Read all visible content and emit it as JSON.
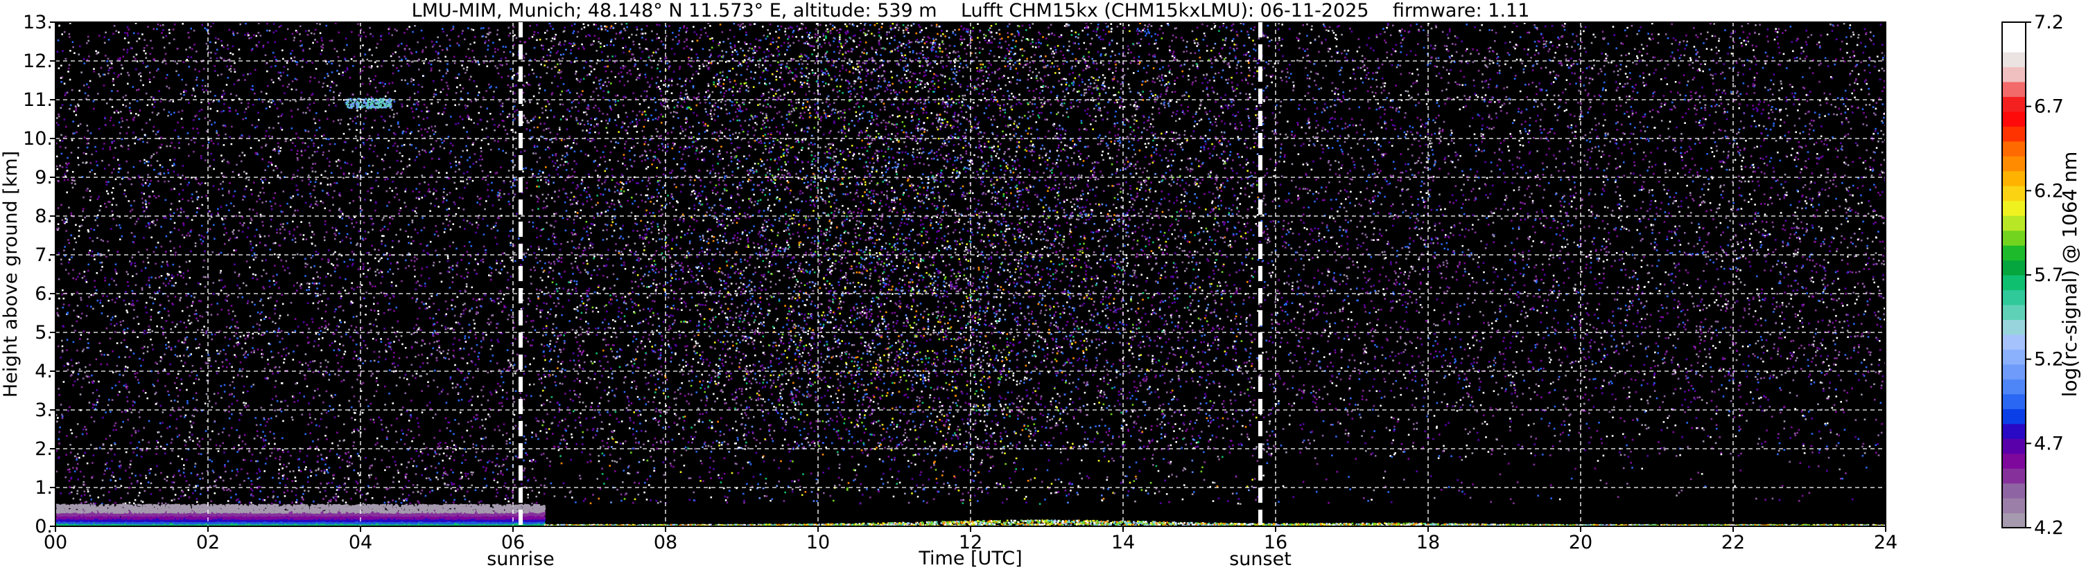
{
  "chart_data": {
    "type": "heatmap",
    "title": "LMU-MIM, Munich; 48.148° N 11.573° E, altitude: 539 m    Lufft CHM15kx (CHM15kxLMU): 06-11-2025    firmware: 1.11",
    "xlabel": "Time [UTC]",
    "ylabel": "Height above ground [km]",
    "xlim": [
      0,
      24
    ],
    "ylim": [
      0,
      13
    ],
    "x_ticks": [
      0,
      2,
      4,
      6,
      8,
      10,
      12,
      14,
      16,
      18,
      20,
      22,
      24
    ],
    "x_tick_labels": [
      "00",
      "02",
      "04",
      "06",
      "08",
      "10",
      "12",
      "14",
      "16",
      "18",
      "20",
      "22",
      "24"
    ],
    "y_ticks": [
      0,
      1,
      2,
      3,
      4,
      5,
      6,
      7,
      8,
      9,
      10,
      11,
      12,
      13
    ],
    "y_tick_labels": [
      "0.",
      "1.",
      "2.",
      "3.",
      "4.",
      "5.",
      "6.",
      "7.",
      "8.",
      "9.",
      "10.",
      "11.",
      "12.",
      "13."
    ],
    "grid": true,
    "events": [
      {
        "label": "sunrise",
        "x": 6.1
      },
      {
        "label": "sunset",
        "x": 15.8
      }
    ],
    "colorbar": {
      "label": "log(rc-signal) @ 1064 nm",
      "range": [
        4.2,
        7.2
      ],
      "tick_values": [
        4.2,
        4.7,
        5.2,
        5.7,
        6.2,
        6.7,
        7.2
      ],
      "tick_labels": [
        "4.2",
        "4.7",
        "5.2",
        "5.7",
        "6.2",
        "6.7",
        "7.2"
      ],
      "colors": [
        "#a59aae",
        "#9b7fa8",
        "#8f64a2",
        "#86319b",
        "#7e079c",
        "#5a00ab",
        "#2a09c4",
        "#0a3fe8",
        "#2a68f3",
        "#4f86f7",
        "#6f9bfb",
        "#8bb0fc",
        "#a6c2fd",
        "#98d4dc",
        "#5fd1b7",
        "#2fc99a",
        "#0fbf70",
        "#06a63f",
        "#1dbb2b",
        "#73d41f",
        "#b8e825",
        "#f0f220",
        "#fbd313",
        "#ffb300",
        "#ff8c00",
        "#ff6a00",
        "#ff3300",
        "#ff0a0a",
        "#f42020",
        "#f26a6a",
        "#f0c0c0",
        "#ebe2e2",
        "#ffffff",
        "#ffffff"
      ]
    },
    "features": [
      {
        "description_type": "aerosol_layer",
        "x": [
          0,
          6.4
        ],
        "y": [
          0,
          0.6
        ],
        "colors": [
          "#1b9a40",
          "#1f5bd8",
          "#7e079c",
          "#a59aae"
        ]
      },
      {
        "description_type": "surface_signal",
        "x": [
          6.4,
          24
        ],
        "y": [
          0,
          0.15
        ]
      },
      {
        "description_type": "noise",
        "x": [
          0,
          24
        ],
        "y": [
          0.6,
          13
        ],
        "colors": [
          "#5a00ab",
          "#86319b",
          "#4f86f7",
          "#73d41f",
          "#ffffff"
        ]
      }
    ]
  }
}
